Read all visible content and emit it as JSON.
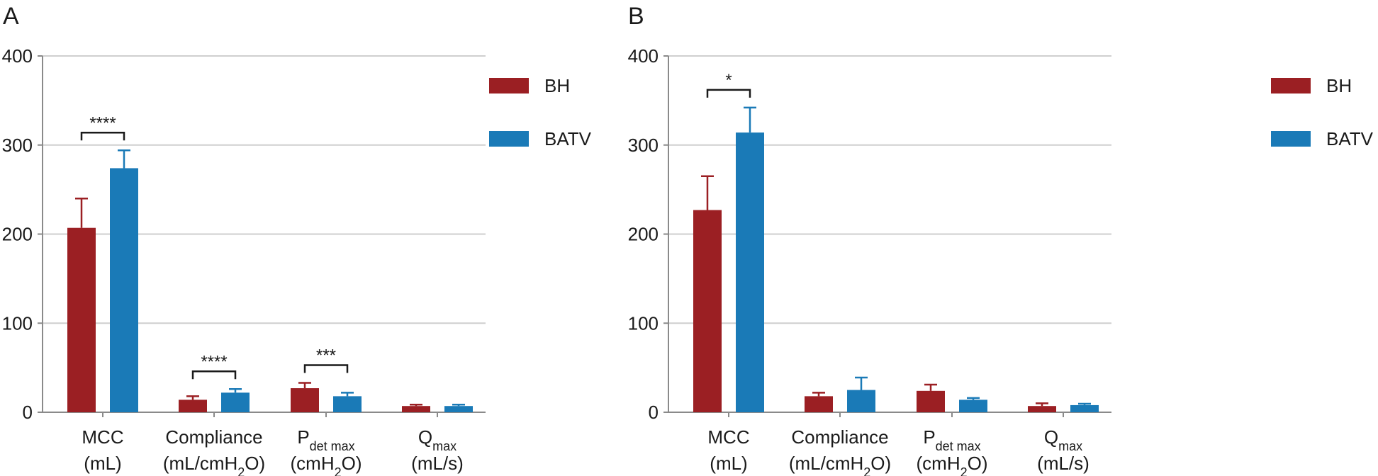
{
  "chart_data": [
    {
      "type": "bar",
      "panel_label": "A",
      "ylim": [
        0,
        400
      ],
      "yticks": [
        "0",
        "100",
        "200",
        "300",
        "400"
      ],
      "categories": [
        {
          "line1": "MCC",
          "line2": "(mL)"
        },
        {
          "line1": "Compliance",
          "line2": "(mL/cmH2O)"
        },
        {
          "line1": "Pdet max",
          "line2": "(cmH2O)"
        },
        {
          "line1": "Qmax",
          "line2": "(mL/s)"
        }
      ],
      "series": [
        {
          "name": "BH",
          "color": "#9b1f23",
          "values": [
            207,
            14,
            27,
            7
          ],
          "errors": [
            33,
            4,
            6,
            1.5
          ]
        },
        {
          "name": "BATV",
          "color": "#1a7ab7",
          "values": [
            274,
            22,
            18,
            7
          ],
          "errors": [
            20,
            4,
            4,
            1.5
          ]
        }
      ],
      "significance": [
        {
          "category_index": 0,
          "label": "****"
        },
        {
          "category_index": 1,
          "label": "****"
        },
        {
          "category_index": 2,
          "label": "***"
        }
      ],
      "grid": true,
      "legend_position": "top-right"
    },
    {
      "type": "bar",
      "panel_label": "B",
      "ylim": [
        0,
        400
      ],
      "yticks": [
        "0",
        "100",
        "200",
        "300",
        "400"
      ],
      "categories": [
        {
          "line1": "MCC",
          "line2": "(mL)"
        },
        {
          "line1": "Compliance",
          "line2": "(mL/cmH2O)"
        },
        {
          "line1": "Pdet max",
          "line2": "(cmH2O)"
        },
        {
          "line1": "Qmax",
          "line2": "(mL/s)"
        }
      ],
      "series": [
        {
          "name": "BH",
          "color": "#9b1f23",
          "values": [
            227,
            18,
            24,
            7
          ],
          "errors": [
            38,
            4,
            7,
            3
          ]
        },
        {
          "name": "BATV",
          "color": "#1a7ab7",
          "values": [
            314,
            25,
            14,
            8
          ],
          "errors": [
            28,
            14,
            2,
            1.5
          ]
        }
      ],
      "significance": [
        {
          "category_index": 0,
          "label": "*"
        }
      ],
      "grid": true,
      "legend_position": "top-right"
    }
  ]
}
